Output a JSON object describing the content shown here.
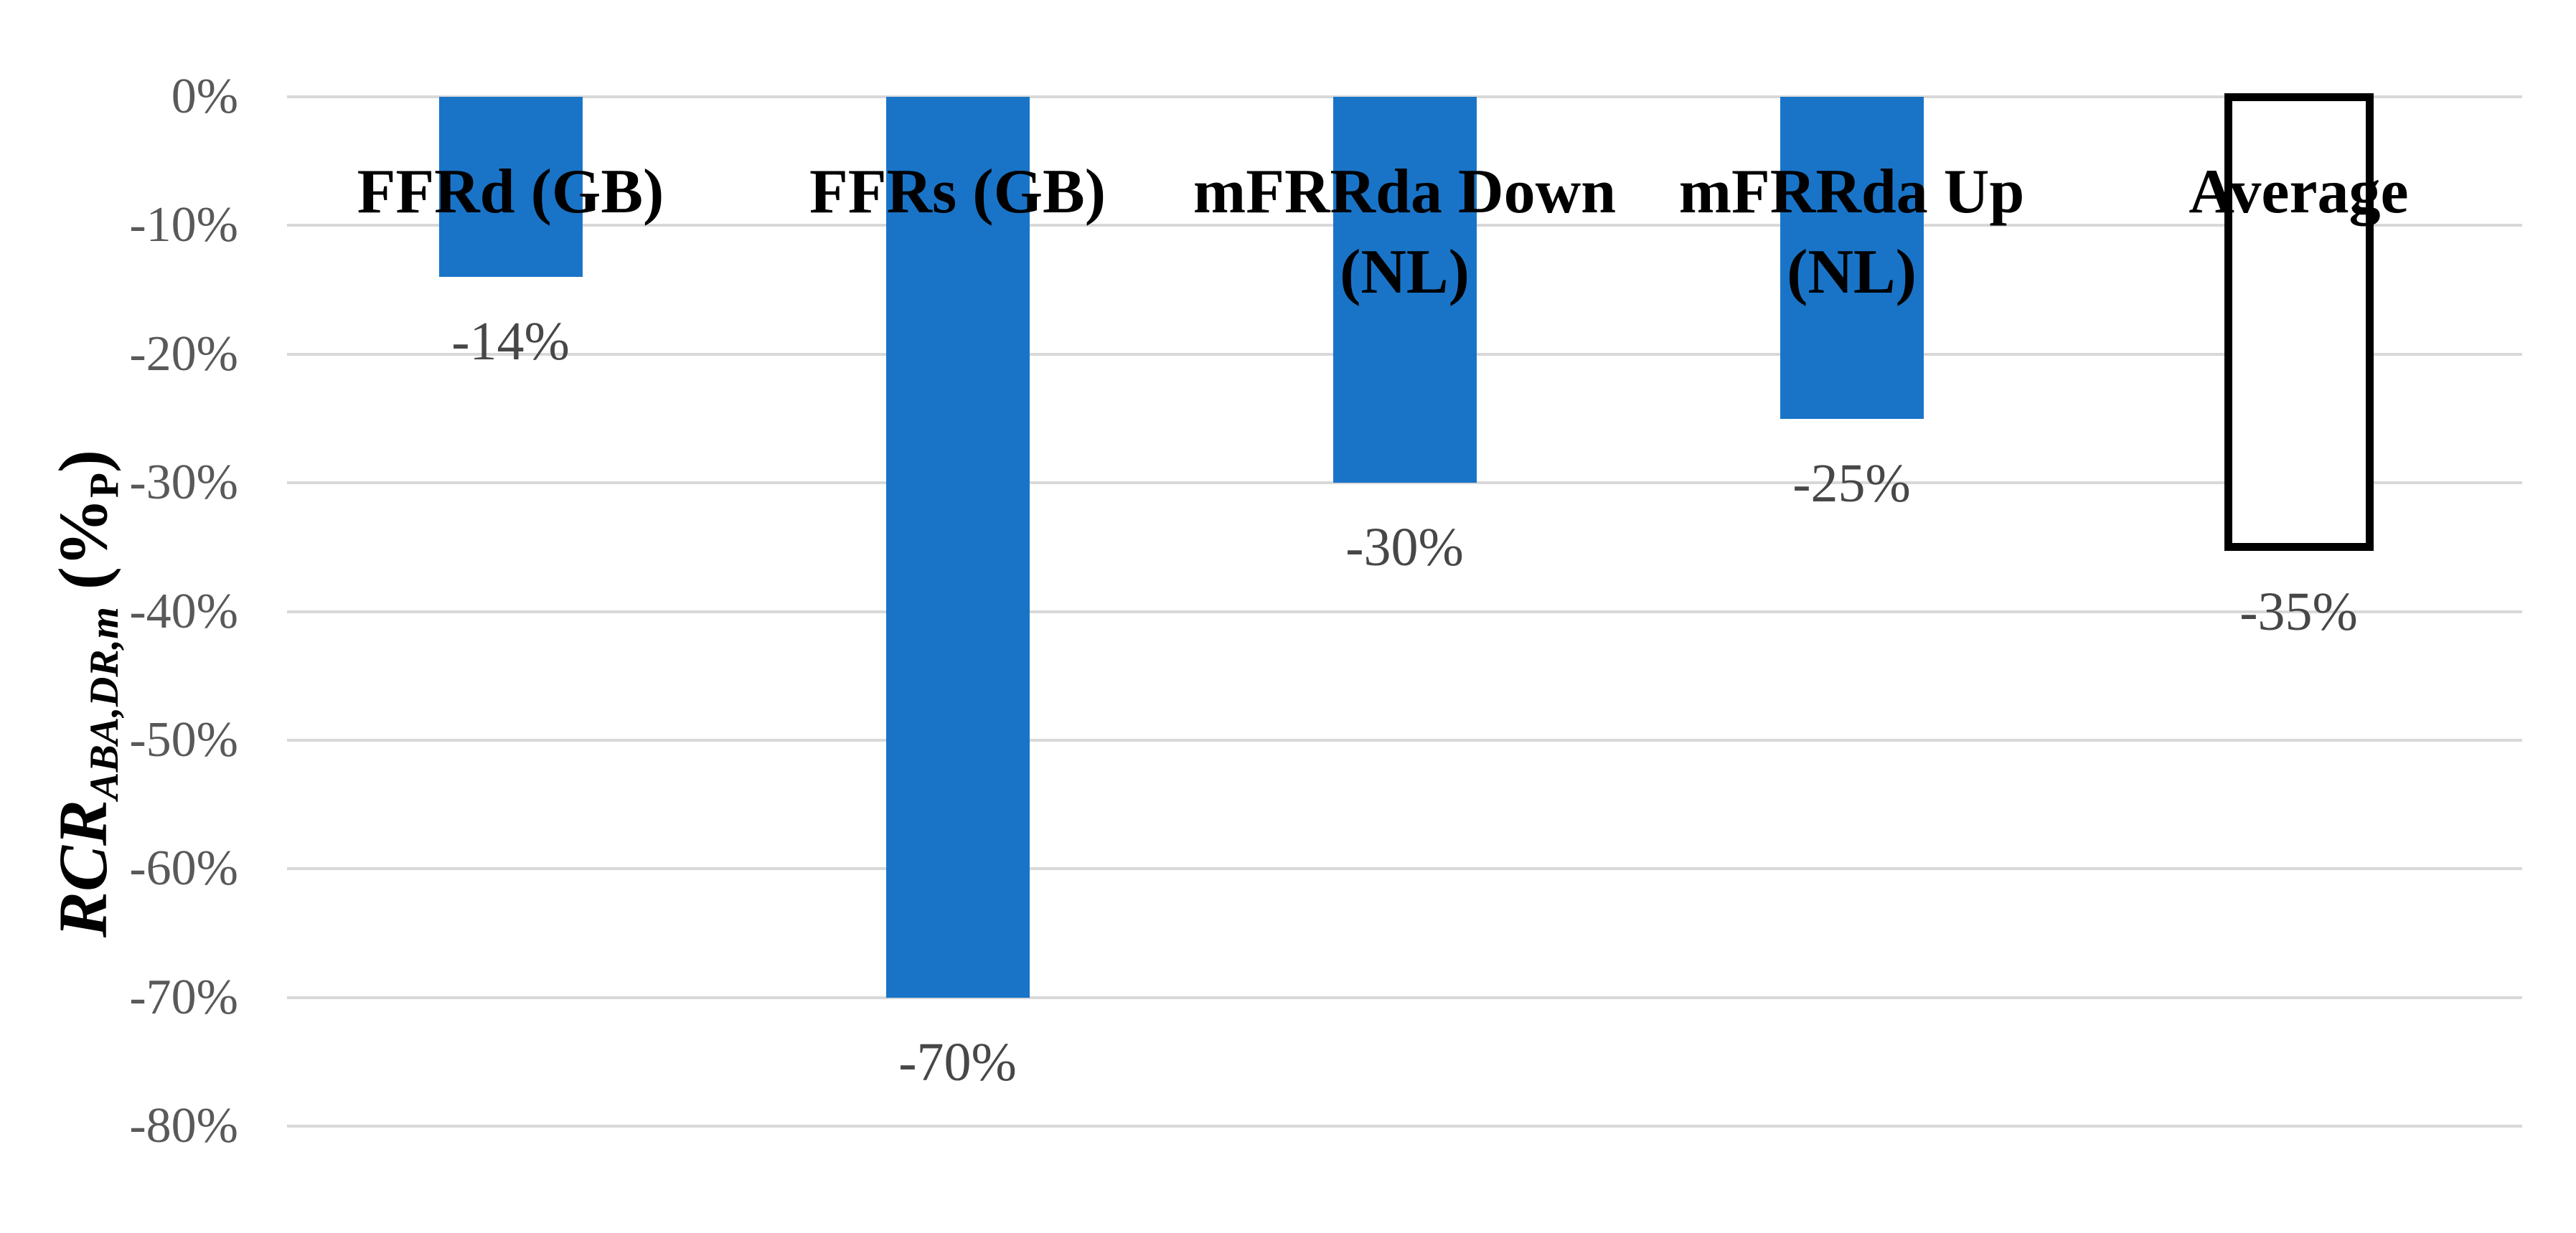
{
  "chart_data": {
    "type": "bar",
    "title": "",
    "orientation": "vertical",
    "categories": [
      "FFRd (GB)",
      "FFRs (GB)",
      "mFRRda Down\n(NL)",
      "mFRRda Up\n(NL)",
      "Average"
    ],
    "values": [
      -14,
      -70,
      -30,
      -25,
      -35
    ],
    "data_labels": [
      "-14%",
      "-70%",
      "-30%",
      "-25%",
      "-35%"
    ],
    "bar_styles": [
      "fill",
      "fill",
      "fill",
      "fill",
      "outline"
    ],
    "y_axis": {
      "title_main": "RCR",
      "title_subscript": "ABA,DR,m",
      "title_unit_open": " (%",
      "title_unit_subscript": "P",
      "title_unit_close": ")",
      "ticks": [
        "0%",
        "-10%",
        "-20%",
        "-30%",
        "-40%",
        "-50%",
        "-60%",
        "-70%",
        "-80%"
      ],
      "tick_values": [
        0,
        -10,
        -20,
        -30,
        -40,
        -50,
        -60,
        -70,
        -80
      ],
      "ylim": [
        -80,
        0
      ],
      "grid": true
    },
    "x_axis": {
      "label_position": "inside-top",
      "category_label_weight": "bold"
    },
    "legend": null,
    "colors": {
      "bar_fill": "#1974C8",
      "outline_bar_fill": "#FFFFFF",
      "outline_bar_border": "#000000",
      "gridline": "#D8D8D8",
      "tick_label": "#595959",
      "data_label": "#474747",
      "category_label": "#000000",
      "background": "#FFFFFF"
    }
  }
}
